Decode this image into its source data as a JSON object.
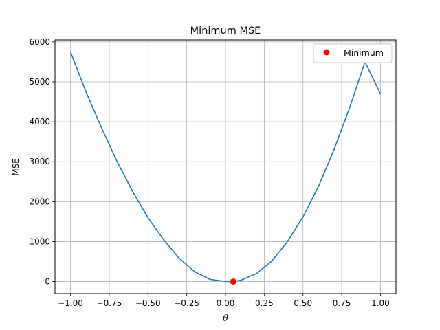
{
  "chart_data": {
    "type": "line",
    "title": "Minimum MSE",
    "xlabel": "θ",
    "ylabel": "MSE",
    "xlim": [
      -1.1,
      1.1
    ],
    "ylim": [
      -300,
      6050
    ],
    "xticks": [
      -1.0,
      -0.75,
      -0.5,
      -0.25,
      0.0,
      0.25,
      0.5,
      0.75,
      1.0
    ],
    "xtick_labels": [
      "−1.00",
      "−0.75",
      "−0.50",
      "−0.25",
      "0.00",
      "0.25",
      "0.50",
      "0.75",
      "1.00"
    ],
    "yticks": [
      0,
      1000,
      2000,
      3000,
      4000,
      5000,
      6000
    ],
    "ytick_labels": [
      "0",
      "1000",
      "2000",
      "3000",
      "4000",
      "5000",
      "6000"
    ],
    "grid": true,
    "legend_position": "top-right",
    "series": [
      {
        "color": "#1f77b4",
        "x": [
          -1.0,
          -0.9,
          -0.8,
          -0.7,
          -0.6,
          -0.5,
          -0.4,
          -0.3,
          -0.2,
          -0.1,
          0.0,
          0.05,
          0.1,
          0.2,
          0.3,
          0.4,
          0.5,
          0.6,
          0.7,
          0.8,
          0.9,
          1.0
        ],
        "y": [
          5750,
          4750,
          3850,
          3010,
          2260,
          1600,
          1050,
          590,
          250,
          55,
          5,
          0,
          35,
          200,
          520,
          1000,
          1620,
          2380,
          3300,
          4340,
          5500,
          4700
        ]
      },
      {
        "name": "Minimum",
        "type": "scatter",
        "color": "#ff0000",
        "x": [
          0.05
        ],
        "y": [
          0
        ]
      }
    ]
  }
}
